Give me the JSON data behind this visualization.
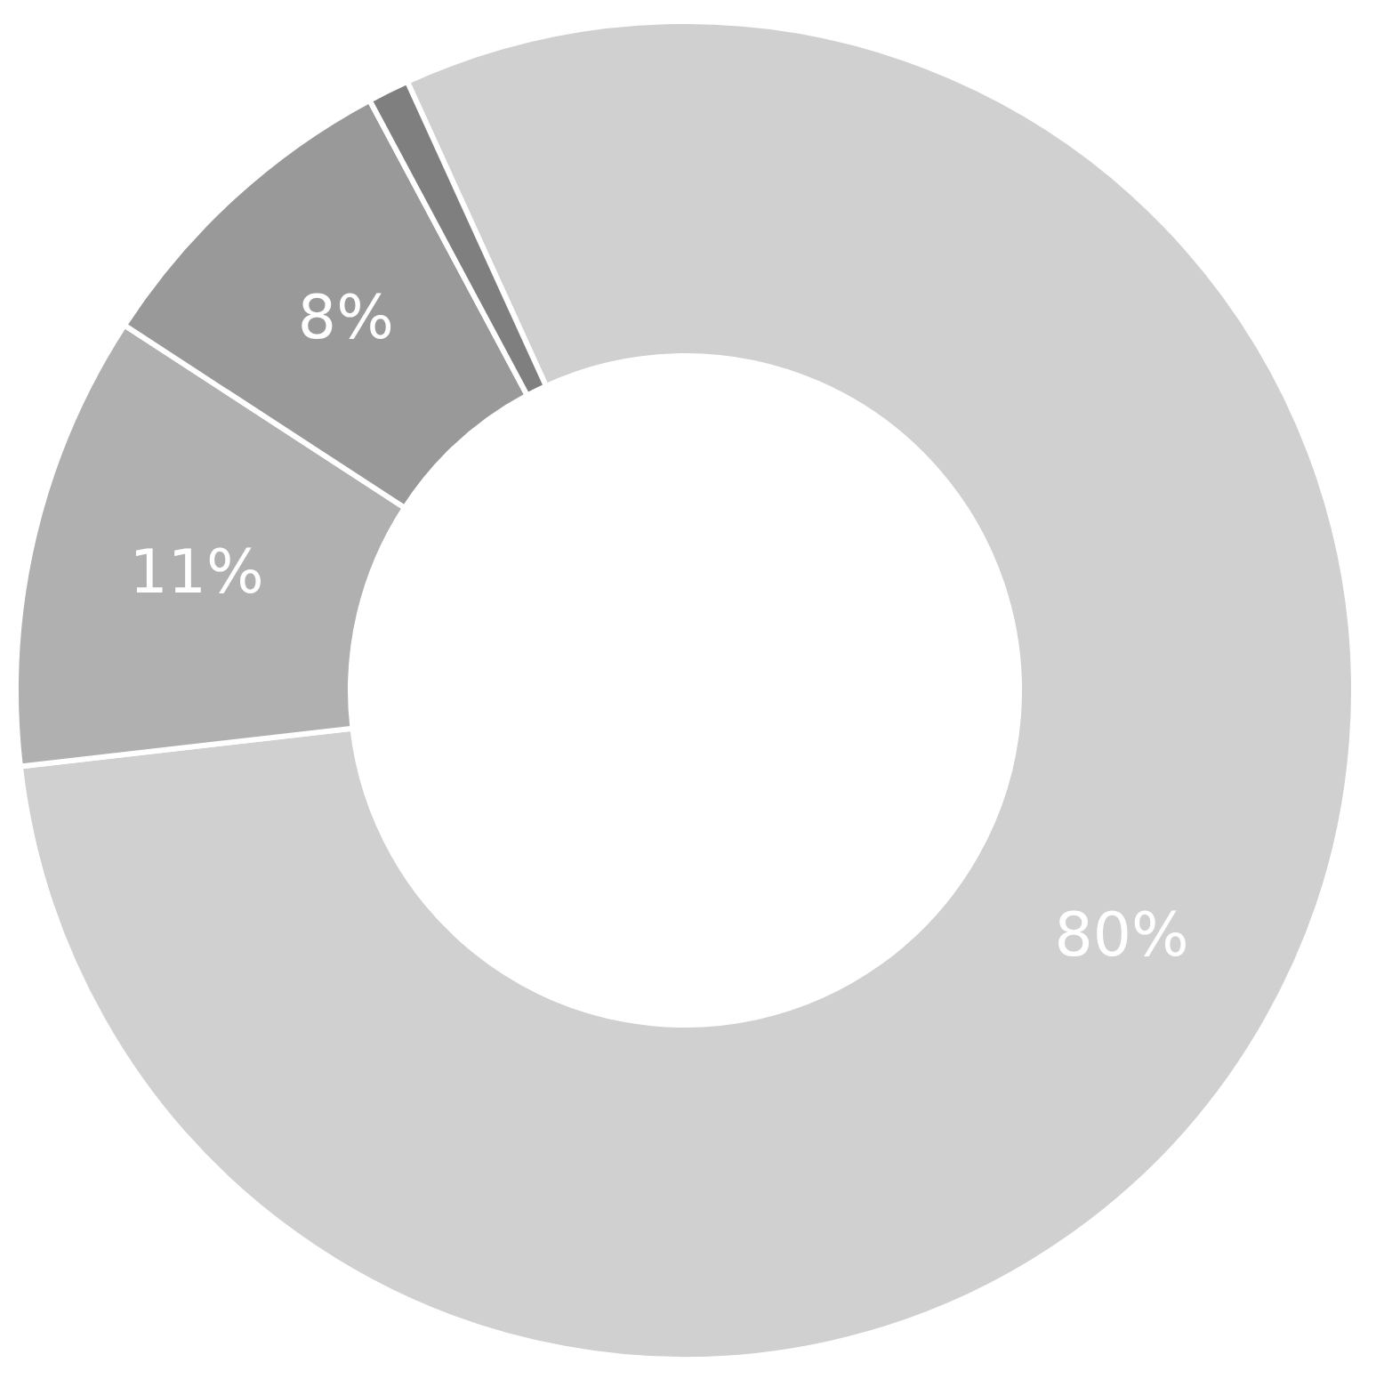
{
  "chart_data": {
    "type": "donut",
    "categories": [
      null,
      null,
      null,
      null
    ],
    "values": [
      80,
      11,
      8,
      1
    ],
    "colors": [
      "#d0d0d0",
      "#b0b0b0",
      "#999999",
      "#7f7f7f"
    ],
    "value_labels": [
      "80%",
      "11%",
      "8%",
      null
    ],
    "legend": false
  }
}
